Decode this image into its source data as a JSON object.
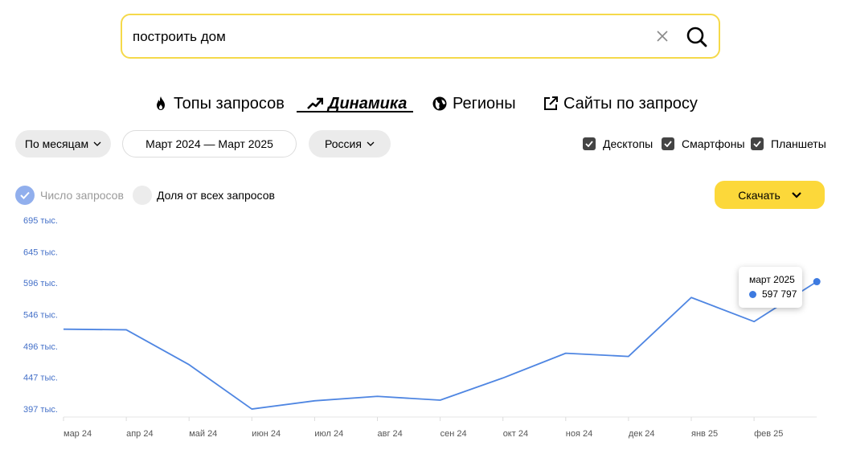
{
  "search": {
    "value": "построить дом"
  },
  "tabs": [
    {
      "label": "Топы запросов",
      "icon": "fire-icon"
    },
    {
      "label": "Динамика",
      "icon": "trend-up-icon"
    },
    {
      "label": "Регионы",
      "icon": "globe-icon"
    },
    {
      "label": "Сайты по запросу",
      "icon": "external-link-icon"
    }
  ],
  "filters": {
    "period": "По месяцам",
    "range": "Март 2024 — Март 2025",
    "region": "Россия"
  },
  "devices": [
    {
      "label": "Десктопы",
      "checked": true
    },
    {
      "label": "Смартфоны",
      "checked": true
    },
    {
      "label": "Планшеты",
      "checked": true
    }
  ],
  "metrics": {
    "count": "Число запросов",
    "share": "Доля от всех запросов"
  },
  "download_label": "Скачать",
  "tooltip": {
    "title": "март 2025",
    "value": "597 797"
  },
  "colors": {
    "accent": "#fcd83a",
    "line": "#4f86e2",
    "tick": "#4470c8"
  },
  "chart_data": {
    "type": "line",
    "categories": [
      "мар 24",
      "апр 24",
      "май 24",
      "июн 24",
      "июл 24",
      "авг 24",
      "сен 24",
      "окт 24",
      "ноя 24",
      "дек 24",
      "янв 25",
      "фев 25",
      "мар 25"
    ],
    "x_tick_labels": [
      "мар 24",
      "апр 24",
      "май 24",
      "июн 24",
      "июл 24",
      "авг 24",
      "сен 24",
      "окт 24",
      "ноя 24",
      "дек 24",
      "янв 25",
      "фев 25"
    ],
    "y_ticks": [
      397,
      447,
      496,
      546,
      596,
      645,
      695
    ],
    "y_tick_labels": [
      "397 тыс.",
      "447 тыс.",
      "496 тыс.",
      "546 тыс.",
      "596 тыс.",
      "645 тыс.",
      "695 тыс."
    ],
    "values": [
      523,
      522,
      467,
      397,
      410,
      417,
      411,
      446,
      485,
      480,
      573,
      535,
      598
    ],
    "ylim": [
      392,
      695
    ]
  }
}
